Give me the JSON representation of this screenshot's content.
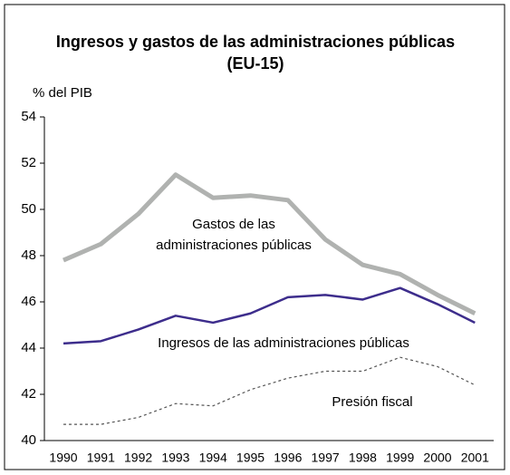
{
  "chart_data": {
    "type": "line",
    "title": "Ingresos y gastos de las administraciones públicas",
    "subtitle": "(EU-15)",
    "y_label": "% del PIB",
    "categories": [
      "1990",
      "1991",
      "1992",
      "1993",
      "1994",
      "1995",
      "1996",
      "1997",
      "1998",
      "1999",
      "2000",
      "2001"
    ],
    "series": [
      {
        "name": "Gastos de las administraciones públicas",
        "color": "#b0b2b0",
        "values": [
          47.8,
          48.5,
          49.8,
          51.5,
          50.5,
          50.6,
          50.4,
          48.7,
          47.6,
          47.2,
          46.3,
          45.5
        ]
      },
      {
        "name": "Ingresos de las administraciones públicas",
        "color": "#3d2d8c",
        "values": [
          44.2,
          44.3,
          44.8,
          45.4,
          45.1,
          45.5,
          46.2,
          46.3,
          46.1,
          46.6,
          45.9,
          45.1
        ]
      },
      {
        "name": "Presión fiscal",
        "color": "#555555",
        "values": [
          40.7,
          40.7,
          41.0,
          41.6,
          41.5,
          42.2,
          42.7,
          43.0,
          43.0,
          43.6,
          43.2,
          42.4
        ]
      }
    ],
    "ylim": [
      40,
      54
    ],
    "yticks": [
      40,
      42,
      44,
      46,
      48,
      50,
      52,
      54
    ]
  }
}
